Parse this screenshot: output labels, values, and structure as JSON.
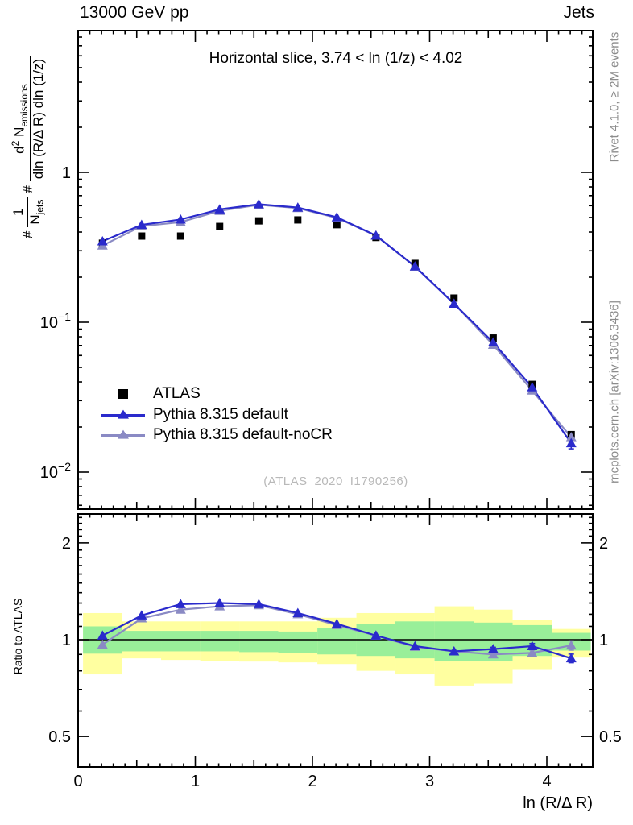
{
  "header": {
    "left": "13000 GeV pp",
    "right": "Jets"
  },
  "panel_title": "Horizontal slice, 3.74 < ln (1/z) < 4.02",
  "watermark": "(ATLAS_2020_I1790256)",
  "side_notes": {
    "top": "Rivet 4.1.0, ≥ 2M events",
    "bottom": "mcplots.cern.ch [arXiv:1306.3436]"
  },
  "ratio_ylabel": "Ratio to ATLAS",
  "xlabel": "ln (R/Δ R)",
  "ylabel": {
    "hash1": "#",
    "frac1_num": "1",
    "frac1_den_base": "N",
    "frac1_den_sub": "jets",
    "hash2": "#",
    "frac2_num_base": "d",
    "frac2_num_sup": "2",
    "frac2_num_mid": " N",
    "frac2_num_sub": "emissions",
    "frac2_den": "dln (R/Δ R) dln (1/z)"
  },
  "legend": [
    {
      "label": "ATLAS",
      "marker": "square",
      "color": "#000000"
    },
    {
      "label": "Pythia 8.315 default",
      "marker": "triangle-line",
      "color": "#2a2acc"
    },
    {
      "label": "Pythia 8.315 default-noCR",
      "marker": "triangle-line",
      "color": "#8a8ac4"
    }
  ],
  "colors": {
    "blue": "#2a2acc",
    "slate": "#8a8ac4",
    "band_yellow": "#ffffa0",
    "band_green": "#99ef99",
    "frame": "#000000",
    "gray_text": "#8c8c8c",
    "watermark": "#b9b9b9"
  },
  "chart_data": {
    "type": "line",
    "title": "Horizontal slice, 3.74 < ln (1/z) < 4.02",
    "xlabel": "ln (R/Δ R)",
    "ylabel_main": "#1/N_jets # d^2 N_emissions / dln(R/DR) dln(1/z)",
    "ylabel_ratio": "Ratio to ATLAS",
    "x_range": [
      0,
      4.39
    ],
    "main_y_range": [
      0.0057,
      8.8
    ],
    "main_y_scale": "log",
    "ratio_y_range": [
      0.402,
      2.46
    ],
    "ratio_y_scale": "log",
    "grid": false,
    "legend_position": "middle-left",
    "bin_edges": [
      0.042,
      0.375,
      0.708,
      1.042,
      1.375,
      1.708,
      2.042,
      2.375,
      2.708,
      3.042,
      3.375,
      3.708,
      4.042,
      4.375
    ],
    "x": [
      0.208,
      0.542,
      0.875,
      1.208,
      1.542,
      1.875,
      2.208,
      2.542,
      2.875,
      3.208,
      3.542,
      3.875,
      4.208
    ],
    "series": [
      {
        "name": "ATLAS",
        "style": "square-black",
        "values": [
          0.337,
          0.376,
          0.376,
          0.436,
          0.475,
          0.482,
          0.448,
          0.368,
          0.247,
          0.145,
          0.0785,
          0.0385,
          0.0178
        ]
      },
      {
        "name": "Pythia 8.315 default",
        "style": "triangle-blue-line",
        "values": [
          0.347,
          0.447,
          0.485,
          0.567,
          0.613,
          0.583,
          0.502,
          0.379,
          0.236,
          0.133,
          0.0734,
          0.0368,
          0.0156
        ],
        "value_err": [
          0,
          0,
          0,
          0,
          0,
          0,
          0,
          0,
          0,
          0,
          0,
          0,
          0.0013
        ],
        "ratio": [
          1.03,
          1.19,
          1.29,
          1.3,
          1.29,
          1.21,
          1.12,
          1.03,
          0.955,
          0.92,
          0.935,
          0.955,
          0.875
        ],
        "ratio_err": [
          0,
          0,
          0,
          0,
          0,
          0,
          0,
          0,
          0,
          0.005,
          0.012,
          0.018,
          0.027
        ]
      },
      {
        "name": "Pythia 8.315 default-noCR",
        "style": "triangle-slate-line",
        "values": [
          0.325,
          0.438,
          0.466,
          0.554,
          0.608,
          0.578,
          0.497,
          0.379,
          0.235,
          0.133,
          0.0707,
          0.035,
          0.0171
        ],
        "value_err": [
          0,
          0,
          0,
          0,
          0,
          0,
          0,
          0,
          0,
          0,
          0,
          0,
          0.0013
        ],
        "ratio": [
          0.965,
          1.165,
          1.24,
          1.27,
          1.28,
          1.2,
          1.11,
          1.03,
          0.95,
          0.92,
          0.9,
          0.91,
          0.96
        ],
        "ratio_err": [
          0,
          0,
          0,
          0,
          0,
          0,
          0,
          0,
          0,
          0.005,
          0.012,
          0.018,
          0.032
        ]
      }
    ],
    "bands": {
      "yellow_hi": [
        1.21,
        1.14,
        1.14,
        1.14,
        1.14,
        1.14,
        1.17,
        1.21,
        1.21,
        1.27,
        1.24,
        1.15,
        1.08
      ],
      "green_hi": [
        1.1,
        1.065,
        1.065,
        1.065,
        1.065,
        1.06,
        1.09,
        1.12,
        1.14,
        1.14,
        1.13,
        1.11,
        1.05
      ],
      "green_lo": [
        0.905,
        0.92,
        0.92,
        0.92,
        0.915,
        0.91,
        0.9,
        0.89,
        0.875,
        0.86,
        0.86,
        0.89,
        0.925
      ],
      "yellow_lo": [
        0.78,
        0.875,
        0.865,
        0.86,
        0.855,
        0.85,
        0.84,
        0.8,
        0.78,
        0.72,
        0.73,
        0.81,
        0.88
      ]
    },
    "x_tick_labels": [
      {
        "v": 0,
        "label": "0"
      },
      {
        "v": 1,
        "label": "1"
      },
      {
        "v": 2,
        "label": "2"
      },
      {
        "v": 3,
        "label": "3"
      },
      {
        "v": 4,
        "label": "4"
      }
    ],
    "main_y_tick_labels": [
      {
        "v": 1,
        "base": "1",
        "exp": ""
      },
      {
        "v": 0.1,
        "base": "10",
        "exp": "−1"
      },
      {
        "v": 0.01,
        "base": "10",
        "exp": "−2"
      }
    ],
    "ratio_y_tick_labels": [
      {
        "v": 2,
        "label": "2"
      },
      {
        "v": 1,
        "label": "1"
      },
      {
        "v": 0.5,
        "label": "0.5"
      }
    ]
  }
}
